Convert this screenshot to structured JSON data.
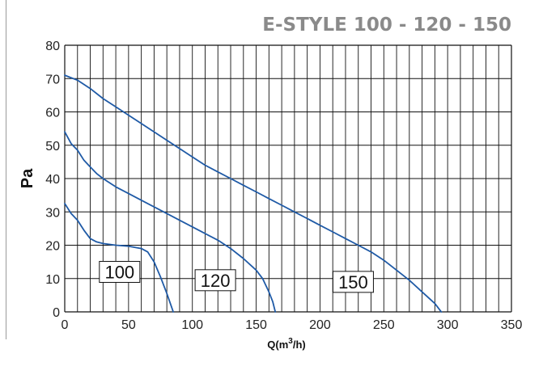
{
  "chart_data": {
    "type": "line",
    "title": "E-STYLE 100 - 120 - 150",
    "xlabel": "Q(m³/h)",
    "xlabel_parts": {
      "base": "Q(m",
      "sup": "3",
      "tail": "/h)"
    },
    "ylabel": "Pa",
    "xlim": [
      0,
      350
    ],
    "ylim": [
      0,
      80
    ],
    "x_ticks": [
      0,
      50,
      100,
      150,
      200,
      250,
      300,
      350
    ],
    "y_ticks": [
      0,
      10,
      20,
      30,
      40,
      50,
      60,
      70,
      80
    ],
    "x_tick_labels": [
      "0",
      "50",
      "100",
      "150",
      "200",
      "250",
      "300",
      "350"
    ],
    "y_tick_labels": [
      "0",
      "10",
      "20",
      "30",
      "40",
      "50",
      "60",
      "70",
      "80"
    ],
    "grid": true,
    "grid_x_step": 10,
    "grid_y_step": 10,
    "line_color": "#1f5aa6",
    "series": [
      {
        "name": "100",
        "label_at": [
          43,
          12
        ],
        "points": [
          [
            0,
            32.5
          ],
          [
            5,
            29.5
          ],
          [
            10,
            27.5
          ],
          [
            15,
            24.5
          ],
          [
            20,
            22
          ],
          [
            25,
            21
          ],
          [
            30,
            20.5
          ],
          [
            40,
            20
          ],
          [
            50,
            19.7
          ],
          [
            60,
            19
          ],
          [
            65,
            18
          ],
          [
            70,
            15
          ],
          [
            75,
            10.5
          ],
          [
            80,
            5.5
          ],
          [
            85,
            0
          ]
        ]
      },
      {
        "name": "120",
        "label_at": [
          118,
          9.5
        ],
        "points": [
          [
            0,
            54
          ],
          [
            5,
            50.5
          ],
          [
            10,
            48.5
          ],
          [
            15,
            45.5
          ],
          [
            20,
            43.5
          ],
          [
            25,
            41.5
          ],
          [
            30,
            40
          ],
          [
            40,
            37.5
          ],
          [
            50,
            35.5
          ],
          [
            60,
            33.5
          ],
          [
            70,
            31.5
          ],
          [
            80,
            29.5
          ],
          [
            90,
            27.5
          ],
          [
            100,
            25.5
          ],
          [
            110,
            23.5
          ],
          [
            120,
            21.5
          ],
          [
            130,
            19
          ],
          [
            140,
            16
          ],
          [
            150,
            12.5
          ],
          [
            155,
            10
          ],
          [
            160,
            6
          ],
          [
            163,
            3
          ],
          [
            165,
            0
          ]
        ]
      },
      {
        "name": "150",
        "label_at": [
          226,
          9
        ]
      }
    ],
    "series_150_points": [
      [
        0,
        71
      ],
      [
        10,
        69.5
      ],
      [
        20,
        67
      ],
      [
        30,
        64
      ],
      [
        40,
        61.5
      ],
      [
        50,
        59
      ],
      [
        60,
        56.5
      ],
      [
        70,
        54
      ],
      [
        80,
        51.5
      ],
      [
        90,
        49
      ],
      [
        100,
        46.5
      ],
      [
        110,
        44
      ],
      [
        120,
        42
      ],
      [
        130,
        40
      ],
      [
        140,
        38
      ],
      [
        150,
        36
      ],
      [
        160,
        34
      ],
      [
        170,
        32
      ],
      [
        180,
        30
      ],
      [
        190,
        28
      ],
      [
        200,
        26
      ],
      [
        210,
        24
      ],
      [
        220,
        22
      ],
      [
        230,
        20
      ],
      [
        240,
        18
      ],
      [
        250,
        15.5
      ],
      [
        260,
        12.5
      ],
      [
        270,
        9.5
      ],
      [
        280,
        6
      ],
      [
        290,
        2.5
      ],
      [
        295,
        0
      ]
    ]
  }
}
